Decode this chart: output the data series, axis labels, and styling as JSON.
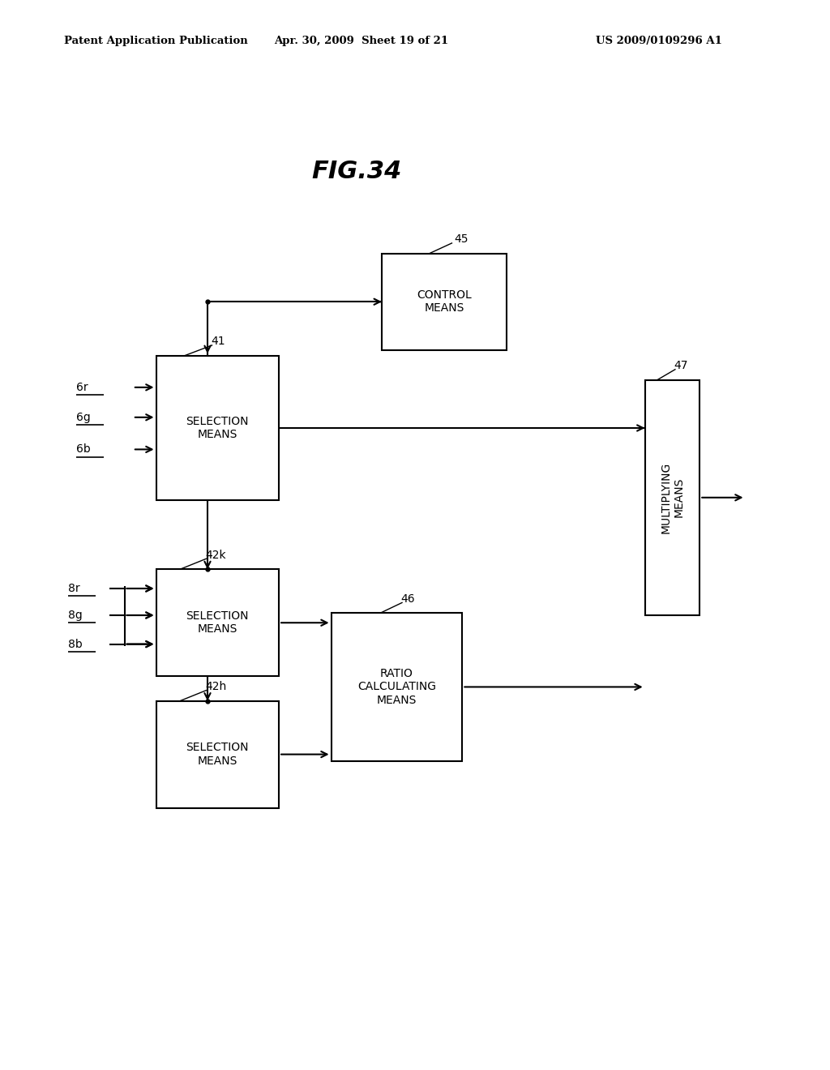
{
  "background": "#ffffff",
  "header_left": "Patent Application Publication",
  "header_mid": "Apr. 30, 2009  Sheet 19 of 21",
  "header_right": "US 2009/0109296 A1",
  "fig_title": "FIG.34"
}
